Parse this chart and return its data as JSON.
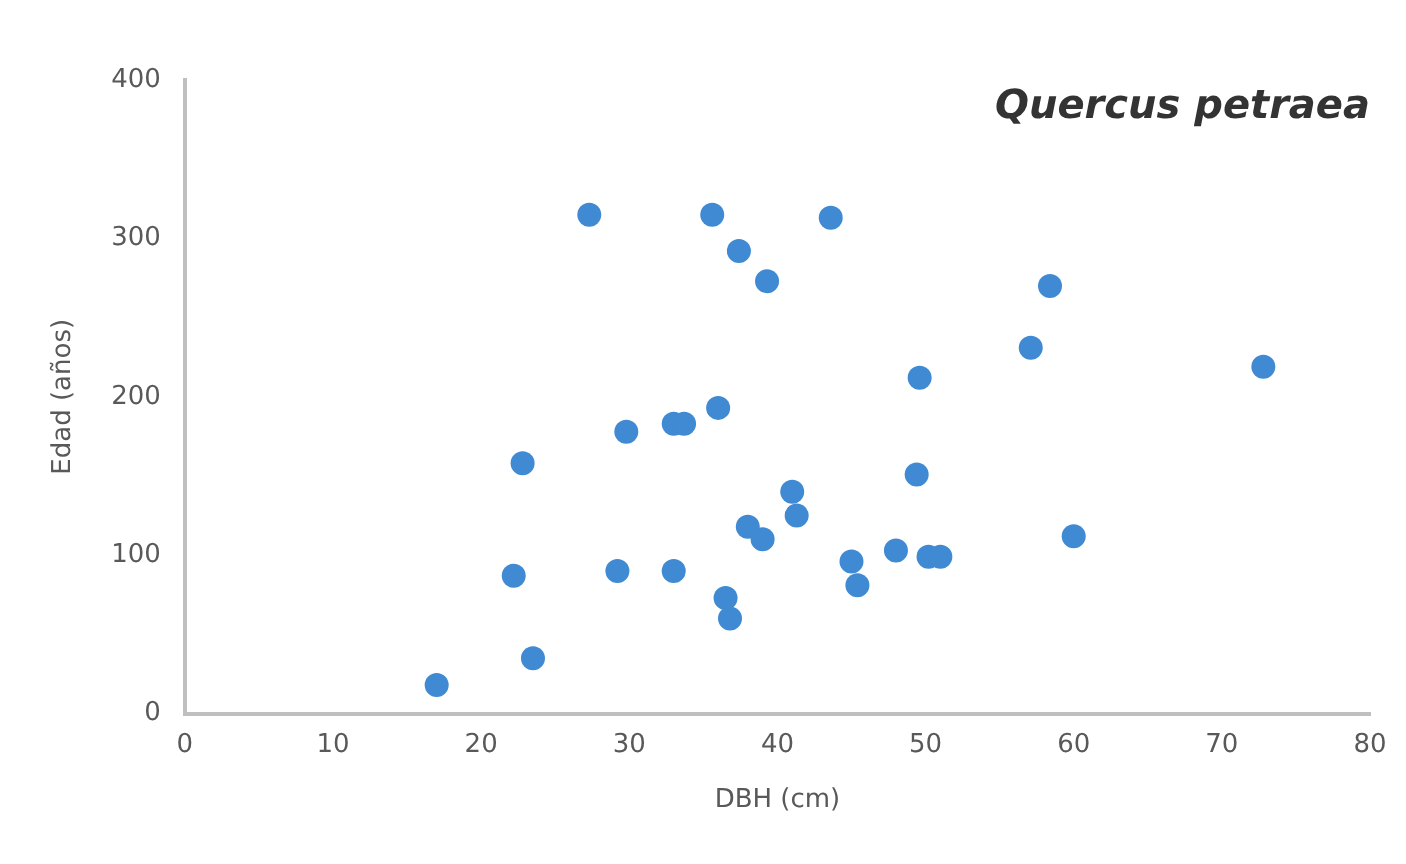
{
  "chart_data": {
    "type": "scatter",
    "title": "Quercus petraea",
    "xlabel": "DBH (cm)",
    "ylabel": "Edad (años)",
    "x": [
      17,
      23.5,
      22.2,
      22.8,
      27.3,
      29.2,
      29.8,
      33,
      33,
      33.7,
      35.6,
      36,
      36.5,
      36.8,
      37.4,
      38,
      39,
      39.3,
      41,
      41.3,
      43.6,
      45,
      45.4,
      48,
      49.4,
      49.6,
      50.2,
      51,
      57.1,
      58.4,
      60,
      72.8
    ],
    "series": [
      {
        "color": "#3f8ad2",
        "values": [
          18,
          35,
          87,
          158,
          315,
          90,
          178,
          90,
          183,
          183,
          315,
          193,
          73,
          60,
          292,
          118,
          110,
          273,
          140,
          125,
          313,
          96,
          81,
          103,
          151,
          212,
          99,
          99,
          231,
          270,
          112,
          219
        ]
      }
    ],
    "xlim": [
      0,
      80
    ],
    "xticks": [
      0,
      10,
      20,
      30,
      40,
      50,
      60,
      70,
      80
    ],
    "ylim": [
      0,
      400
    ],
    "yticks": [
      0,
      100,
      200,
      300,
      400
    ],
    "grid": false,
    "legend": false,
    "marker": "circle"
  }
}
